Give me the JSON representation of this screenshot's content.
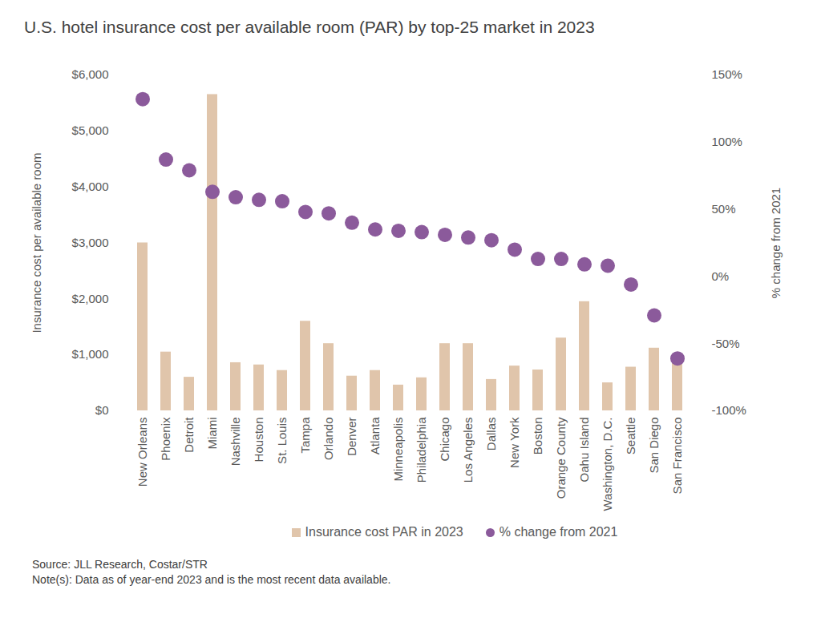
{
  "chart_data": {
    "type": "bar",
    "title": "U.S. hotel insurance cost per available room (PAR) by top-25 market in 2023",
    "categories": [
      "New Orleans",
      "Phoenix",
      "Detroit",
      "Miami",
      "Nashville",
      "Houston",
      "St. Louis",
      "Tampa",
      "Orlando",
      "Denver",
      "Atlanta",
      "Minneapolis",
      "Philadelphia",
      "Chicago",
      "Los Angeles",
      "Dallas",
      "New York",
      "Boston",
      "Orange County",
      "Oahu Island",
      "Washington, D.C.",
      "Seattle",
      "San Diego",
      "San Francisco"
    ],
    "series": [
      {
        "name": "Insurance cost PAR in 2023",
        "type": "bar",
        "color": "#e0c5ab",
        "values": [
          3000,
          1050,
          600,
          5650,
          860,
          820,
          720,
          1600,
          1200,
          620,
          720,
          460,
          590,
          1200,
          1200,
          560,
          800,
          730,
          1300,
          1950,
          500,
          780,
          1120,
          900
        ]
      },
      {
        "name": "% change from 2021",
        "type": "scatter",
        "marker": "circle",
        "axis": "y2",
        "color": "#8b5a9b",
        "values": [
          132,
          87,
          79,
          63,
          59,
          57,
          56,
          48,
          47,
          40,
          35,
          34,
          33,
          31,
          29,
          27,
          20,
          13,
          13,
          9,
          8,
          -6,
          -29,
          -61
        ]
      }
    ],
    "ylabel": "Insurance cost per available room",
    "y2label": "% change from 2021",
    "ylim": [
      0,
      6000
    ],
    "yticks": [
      {
        "value": 0,
        "label": "$0"
      },
      {
        "value": 1000,
        "label": "$1,000"
      },
      {
        "value": 2000,
        "label": "$2,000"
      },
      {
        "value": 3000,
        "label": "$3,000"
      },
      {
        "value": 4000,
        "label": "$4,000"
      },
      {
        "value": 5000,
        "label": "$5,000"
      },
      {
        "value": 6000,
        "label": "$6,000"
      }
    ],
    "y2lim": [
      -100,
      150
    ],
    "y2ticks": [
      {
        "value": -100,
        "label": "-100%"
      },
      {
        "value": -50,
        "label": "-50%"
      },
      {
        "value": 0,
        "label": "0%"
      },
      {
        "value": 50,
        "label": "50%"
      },
      {
        "value": 100,
        "label": "100%"
      },
      {
        "value": 150,
        "label": "150%"
      }
    ],
    "legend": "bottom",
    "grid": false,
    "source": "Source: JLL Research, Costar/STR",
    "note": "Note(s): Data as of year-end 2023 and is the most recent data available."
  }
}
